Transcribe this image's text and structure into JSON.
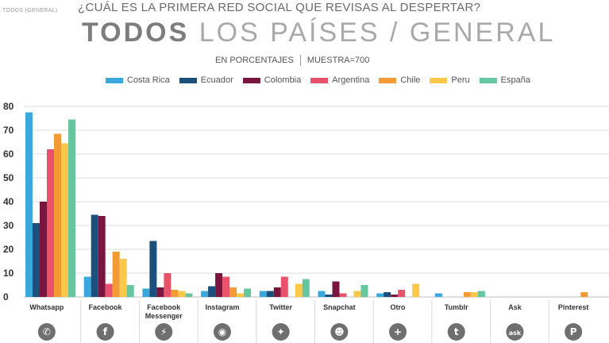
{
  "header": {
    "corner_label": "TODOS (GENERAL)",
    "question": "¿CUÁL ES LA PRIMERA RED SOCIAL QUE REVISAS AL DESPERTAR?",
    "title_bold": "TODOS",
    "title_light": "LOS PAÍSES / GENERAL",
    "units": "EN PORCENTAJES",
    "sample": "MUESTRA=700"
  },
  "chart_data": {
    "type": "bar",
    "title": "¿CUÁL ES LA PRIMERA RED SOCIAL QUE REVISAS AL DESPERTAR?",
    "ylim": [
      0,
      80
    ],
    "yticks": [
      0,
      10,
      20,
      30,
      40,
      50,
      60,
      70,
      80
    ],
    "grid": true,
    "legend": "top",
    "categories": [
      {
        "label": "Whatsapp",
        "icon": "whatsapp-icon"
      },
      {
        "label": "Facebook",
        "icon": "facebook-icon"
      },
      {
        "label": "Facebook Messenger",
        "icon": "messenger-icon"
      },
      {
        "label": "Instagram",
        "icon": "instagram-icon"
      },
      {
        "label": "Twitter",
        "icon": "twitter-icon"
      },
      {
        "label": "Snapchat",
        "icon": "snapchat-icon"
      },
      {
        "label": "Otro",
        "icon": "plus-icon"
      },
      {
        "label": "Tumblr",
        "icon": "tumblr-icon"
      },
      {
        "label": "Ask",
        "icon": "ask-icon"
      },
      {
        "label": "Pinterest",
        "icon": "pinterest-icon"
      }
    ],
    "series": [
      {
        "name": "Costa Rica",
        "color": "#3aa8dc",
        "values": [
          77.5,
          8.5,
          3.5,
          2.5,
          2.5,
          2.5,
          1.5,
          1.5,
          0,
          0
        ]
      },
      {
        "name": "Ecuador",
        "color": "#1b4f7c",
        "values": [
          31,
          34.5,
          23.5,
          4.5,
          2.5,
          1,
          2,
          0,
          0,
          0
        ]
      },
      {
        "name": "Colombia",
        "color": "#7a1540",
        "values": [
          40,
          34,
          4,
          10,
          4,
          6.5,
          1,
          0,
          0,
          0
        ]
      },
      {
        "name": "Argentina",
        "color": "#e8526a",
        "values": [
          62,
          5.5,
          10,
          8.5,
          8.5,
          1.5,
          3,
          0,
          0,
          0
        ]
      },
      {
        "name": "Chile",
        "color": "#f39a34",
        "values": [
          68.5,
          19,
          3,
          4,
          0,
          0,
          0,
          2,
          0,
          2
        ]
      },
      {
        "name": "Peru",
        "color": "#fcc84a",
        "values": [
          64.5,
          16,
          2.5,
          1.5,
          5.5,
          2.5,
          5.5,
          2,
          0,
          0
        ]
      },
      {
        "name": "España",
        "color": "#66c6a0",
        "values": [
          74.5,
          5,
          1.5,
          3.5,
          7.5,
          5,
          0,
          2.5,
          0,
          0
        ]
      }
    ]
  }
}
